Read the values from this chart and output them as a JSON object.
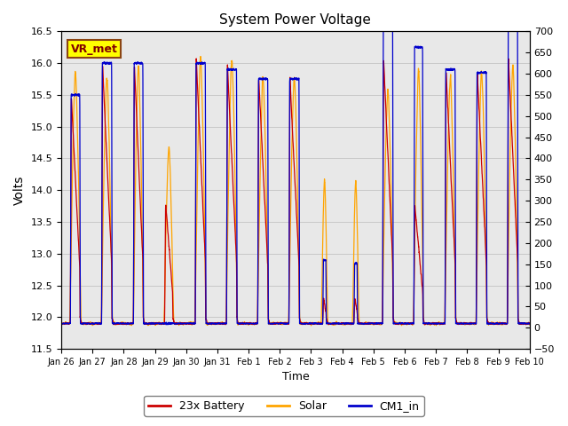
{
  "title": "System Power Voltage",
  "xlabel": "Time",
  "ylabel": "Volts",
  "ylim_left": [
    11.5,
    16.5
  ],
  "ylim_right": [
    -50,
    700
  ],
  "yticks_left": [
    11.5,
    12.0,
    12.5,
    13.0,
    13.5,
    14.0,
    14.5,
    15.0,
    15.5,
    16.0,
    16.5
  ],
  "yticks_right": [
    -50,
    0,
    50,
    100,
    150,
    200,
    250,
    300,
    350,
    400,
    450,
    500,
    550,
    600,
    650,
    700
  ],
  "xtick_labels": [
    "Jan 26",
    "Jan 27",
    "Jan 28",
    "Jan 29",
    "Jan 30",
    "Jan 31",
    "Feb 1",
    "Feb 2",
    "Feb 3",
    "Feb 4",
    "Feb 5",
    "Feb 6",
    "Feb 7",
    "Feb 8",
    "Feb 9",
    "Feb 10"
  ],
  "colors": {
    "battery": "#CC0000",
    "solar": "#FFA500",
    "cm1": "#0000CC"
  },
  "legend_labels": [
    "23x Battery",
    "Solar",
    "CM1_in"
  ],
  "annotation_text": "VR_met",
  "annotation_box_color": "#FFFF00",
  "annotation_text_color": "#800000",
  "annotation_edge_color": "#8B4513",
  "grid_color": "#BBBBBB",
  "bg_color": "#E8E8E8",
  "n_days": 15
}
